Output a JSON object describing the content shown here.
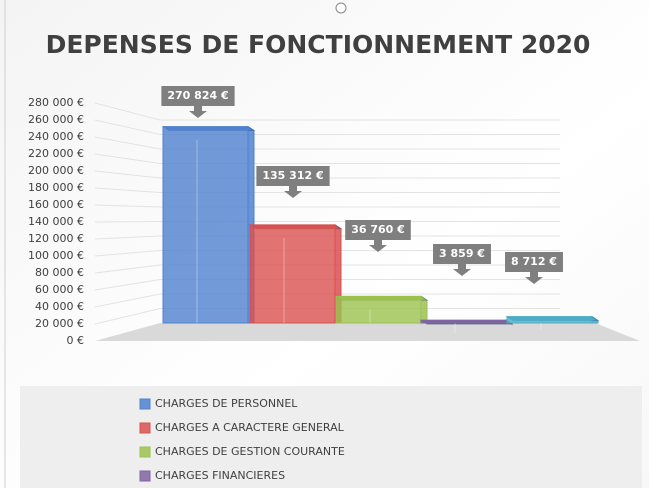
{
  "chart_data": {
    "type": "bar3d",
    "title": "DEPENSES DE FONCTIONNEMENT 2020",
    "series": [
      {
        "name": "CHARGES DE PERSONNEL",
        "color": "#4f81d0",
        "values": [
          270824
        ],
        "value_labels": [
          "270 824 €"
        ]
      },
      {
        "name": "CHARGES A CARACTERE GENERAL",
        "color": "#d9504f",
        "values": [
          135312
        ],
        "value_labels": [
          "135 312 €"
        ]
      },
      {
        "name": "CHARGES DE GESTION COURANTE",
        "color": "#9bc24f",
        "values": [
          36760
        ],
        "value_labels": [
          "36 760 €"
        ]
      },
      {
        "name": "CHARGES FINANCIERES",
        "color": "#8064a2",
        "values": [
          3859
        ],
        "value_labels": [
          "3 859 €"
        ]
      },
      {
        "name": null,
        "color": "#4bacc6",
        "values": [
          8712
        ],
        "value_labels": [
          "8 712 €"
        ]
      }
    ],
    "ylim": [
      0,
      280000
    ],
    "yticks": [
      {
        "value": 0,
        "label": "0 €"
      },
      {
        "value": 20000,
        "label": "20 000 €"
      },
      {
        "value": 40000,
        "label": "40 000 €"
      },
      {
        "value": 60000,
        "label": "60 000 €"
      },
      {
        "value": 80000,
        "label": "80 000 €"
      },
      {
        "value": 100000,
        "label": "100 000 €"
      },
      {
        "value": 120000,
        "label": "120 000 €"
      },
      {
        "value": 140000,
        "label": "140 000 €"
      },
      {
        "value": 160000,
        "label": "160 000 €"
      },
      {
        "value": 180000,
        "label": "180 000 €"
      },
      {
        "value": 200000,
        "label": "200 000 €"
      },
      {
        "value": 220000,
        "label": "220 000 €"
      },
      {
        "value": 240000,
        "label": "240 000 €"
      },
      {
        "value": 260000,
        "label": "260 000 €"
      },
      {
        "value": 280000,
        "label": "280 000 €"
      }
    ],
    "grid": true
  }
}
